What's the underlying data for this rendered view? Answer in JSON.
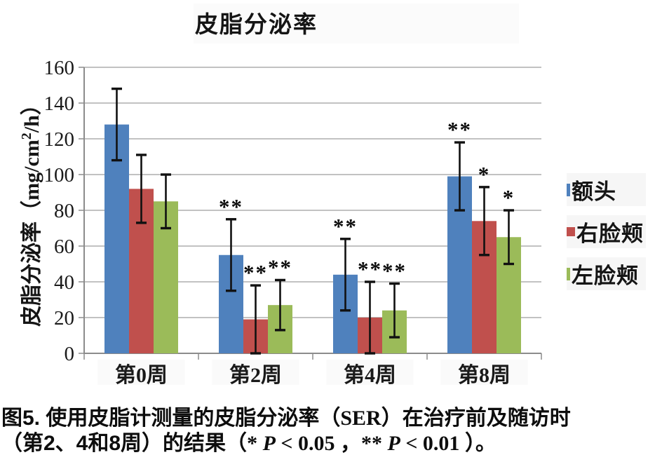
{
  "figure": {
    "title": "皮脂分泌率",
    "y_axis_title": {
      "prefix": "皮脂分泌率（mg/cm",
      "sup": "2",
      "suffix": "/h）"
    },
    "caption_lines": [
      [
        {
          "t": "图5. 使用皮脂计测量的皮脂分泌率（",
          "k": "cjk"
        },
        {
          "t": "SER",
          "k": "lat"
        },
        {
          "t": "）在治疗前及随访时",
          "k": "cjk"
        }
      ],
      [
        {
          "t": "（第2、4和8周）的结果（",
          "k": "cjk"
        },
        {
          "t": "* ",
          "k": "lat"
        },
        {
          "t": "P",
          "k": "it"
        },
        {
          "t": " < 0.05 ",
          "k": "lat"
        },
        {
          "t": "，",
          "k": "cjk"
        },
        {
          "t": "** ",
          "k": "lat"
        },
        {
          "t": "P",
          "k": "it"
        },
        {
          "t": " < 0.01 ",
          "k": "lat"
        },
        {
          "t": "）。",
          "k": "cjk"
        }
      ]
    ]
  },
  "legend": {
    "position": "right",
    "items": [
      {
        "label": "额头",
        "color": "#4F81BD",
        "marker": "thin-bar"
      },
      {
        "label": "右脸颊",
        "color": "#C0504D",
        "marker": "square"
      },
      {
        "label": "左脸颊",
        "color": "#9BBB59",
        "marker": "thin-bar"
      }
    ]
  },
  "chart_data": {
    "type": "bar",
    "title": "皮脂分泌率",
    "xlabel": "",
    "ylabel": "皮脂分泌率（mg/cm²/h）",
    "categories": [
      "第0周",
      "第2周",
      "第4周",
      "第8周"
    ],
    "series": [
      {
        "name": "额头",
        "color": "#4F81BD",
        "values": [
          128,
          55,
          44,
          99
        ],
        "errors": [
          20,
          20,
          20,
          19
        ],
        "sig": [
          "",
          "**",
          "**",
          "**"
        ]
      },
      {
        "name": "右脸颊",
        "color": "#C0504D",
        "values": [
          92,
          19,
          20,
          74
        ],
        "errors": [
          19,
          19,
          20,
          19
        ],
        "sig": [
          "",
          "**",
          "**",
          "*"
        ]
      },
      {
        "name": "左脸颊",
        "color": "#9BBB59",
        "values": [
          85,
          27,
          24,
          65
        ],
        "errors": [
          15,
          14,
          15,
          15
        ],
        "sig": [
          "",
          "**",
          "**",
          "*"
        ]
      }
    ],
    "ylim": [
      0,
      160
    ],
    "ytick_step": 20,
    "grid": true,
    "legend_position": "right",
    "significance_note": "* P < 0.05 ，** P < 0.01",
    "colors": {
      "grid": "#9e9e9e",
      "axis": "#8c8c8c",
      "error_bar": "#111111",
      "background": "#ffffff"
    }
  }
}
